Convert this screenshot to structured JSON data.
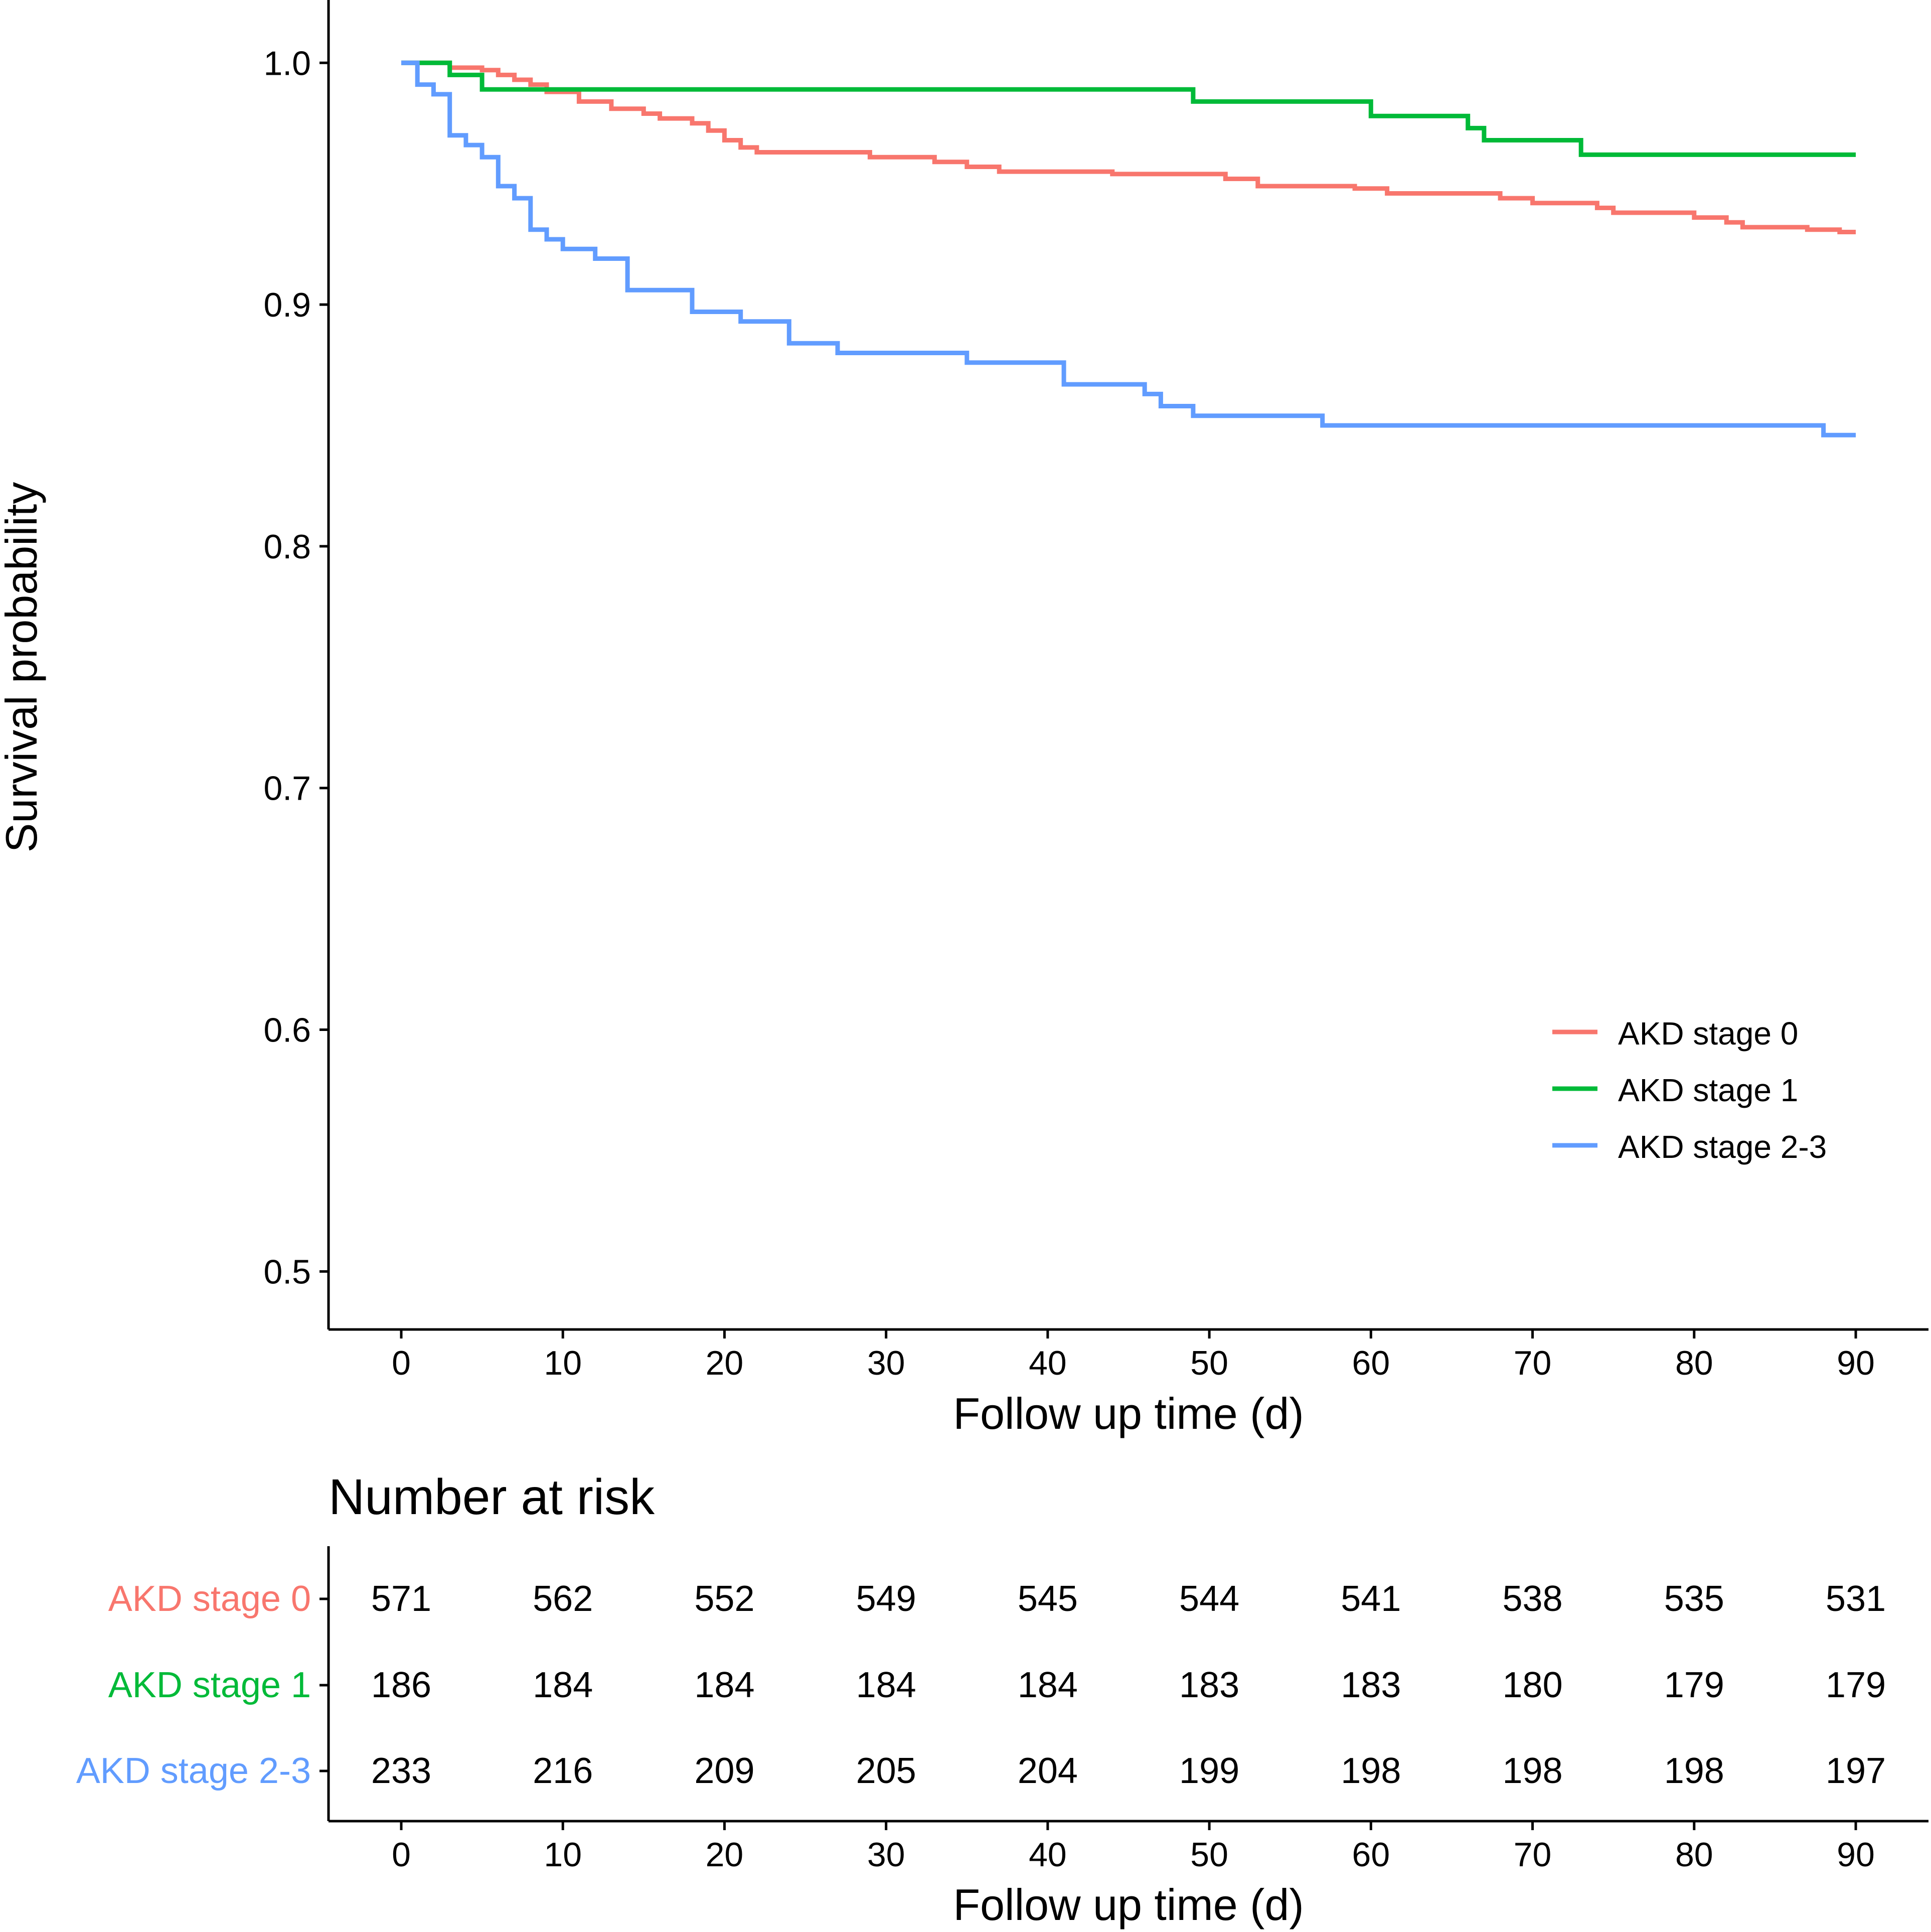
{
  "chart_data": [
    {
      "type": "line",
      "subtype": "kaplan-meier",
      "title": "",
      "xlabel": "Follow up time (d)",
      "ylabel": "Survival probability",
      "xlim": [
        -4.5,
        94.5
      ],
      "ylim": [
        0.476,
        1.026
      ],
      "xticks": [
        0,
        10,
        20,
        30,
        40,
        50,
        60,
        70,
        80,
        90
      ],
      "xtick_labels": [
        "0",
        "10",
        "20",
        "30",
        "40",
        "50",
        "60",
        "70",
        "80",
        "90"
      ],
      "yticks": [
        0.5,
        0.6,
        0.7,
        0.8,
        0.9,
        1.0
      ],
      "ytick_labels": [
        "0.5",
        "0.6",
        "0.7",
        "0.8",
        "0.9",
        "1.0"
      ],
      "grid": false,
      "legend_position": "bottom-right",
      "series": [
        {
          "name": "AKD stage 0",
          "color": "#F8766D",
          "steps": [
            [
              0,
              1.0
            ],
            [
              3,
              0.998
            ],
            [
              5,
              0.997
            ],
            [
              6,
              0.995
            ],
            [
              7,
              0.993
            ],
            [
              8,
              0.991
            ],
            [
              9,
              0.988
            ],
            [
              11,
              0.984
            ],
            [
              13,
              0.981
            ],
            [
              15,
              0.979
            ],
            [
              16,
              0.977
            ],
            [
              18,
              0.975
            ],
            [
              19,
              0.972
            ],
            [
              20,
              0.968
            ],
            [
              21,
              0.965
            ],
            [
              22,
              0.963
            ],
            [
              29,
              0.961
            ],
            [
              33,
              0.959
            ],
            [
              35,
              0.957
            ],
            [
              37,
              0.955
            ],
            [
              44,
              0.954
            ],
            [
              51,
              0.952
            ],
            [
              53,
              0.949
            ],
            [
              59,
              0.948
            ],
            [
              61,
              0.946
            ],
            [
              68,
              0.944
            ],
            [
              70,
              0.942
            ],
            [
              74,
              0.94
            ],
            [
              75,
              0.938
            ],
            [
              80,
              0.936
            ],
            [
              82,
              0.934
            ],
            [
              83,
              0.932
            ],
            [
              87,
              0.931
            ],
            [
              89,
              0.93
            ],
            [
              90,
              0.93
            ]
          ]
        },
        {
          "name": "AKD stage 1",
          "color": "#00BA38",
          "steps": [
            [
              0,
              1.0
            ],
            [
              3,
              0.995
            ],
            [
              5,
              0.989
            ],
            [
              49,
              0.984
            ],
            [
              60,
              0.978
            ],
            [
              66,
              0.973
            ],
            [
              67,
              0.968
            ],
            [
              73,
              0.962
            ],
            [
              90,
              0.962
            ]
          ]
        },
        {
          "name": "AKD stage 2-3",
          "color": "#619CFF",
          "steps": [
            [
              0,
              1.0
            ],
            [
              1,
              0.991
            ],
            [
              2,
              0.987
            ],
            [
              3,
              0.97
            ],
            [
              4,
              0.966
            ],
            [
              5,
              0.961
            ],
            [
              6,
              0.949
            ],
            [
              7,
              0.944
            ],
            [
              8,
              0.931
            ],
            [
              9,
              0.927
            ],
            [
              10,
              0.923
            ],
            [
              12,
              0.919
            ],
            [
              14,
              0.906
            ],
            [
              18,
              0.897
            ],
            [
              21,
              0.893
            ],
            [
              24,
              0.884
            ],
            [
              27,
              0.88
            ],
            [
              35,
              0.876
            ],
            [
              41,
              0.867
            ],
            [
              46,
              0.863
            ],
            [
              47,
              0.858
            ],
            [
              49,
              0.854
            ],
            [
              57,
              0.85
            ],
            [
              88,
              0.846
            ],
            [
              90,
              0.846
            ]
          ]
        }
      ]
    },
    {
      "type": "table",
      "title": "Number at risk",
      "xlabel": "Follow up time (d)",
      "xticks": [
        0,
        10,
        20,
        30,
        40,
        50,
        60,
        70,
        80,
        90
      ],
      "xtick_labels": [
        "0",
        "10",
        "20",
        "30",
        "40",
        "50",
        "60",
        "70",
        "80",
        "90"
      ],
      "rows": [
        {
          "name": "AKD stage 0",
          "color": "#F8766D",
          "values": [
            "571",
            "562",
            "552",
            "549",
            "545",
            "544",
            "541",
            "538",
            "535",
            "531"
          ]
        },
        {
          "name": "AKD stage 1",
          "color": "#00BA38",
          "values": [
            "186",
            "184",
            "184",
            "184",
            "184",
            "183",
            "183",
            "180",
            "179",
            "179"
          ]
        },
        {
          "name": "AKD stage 2-3",
          "color": "#619CFF",
          "values": [
            "233",
            "216",
            "209",
            "205",
            "204",
            "199",
            "198",
            "198",
            "198",
            "197"
          ]
        }
      ]
    }
  ]
}
